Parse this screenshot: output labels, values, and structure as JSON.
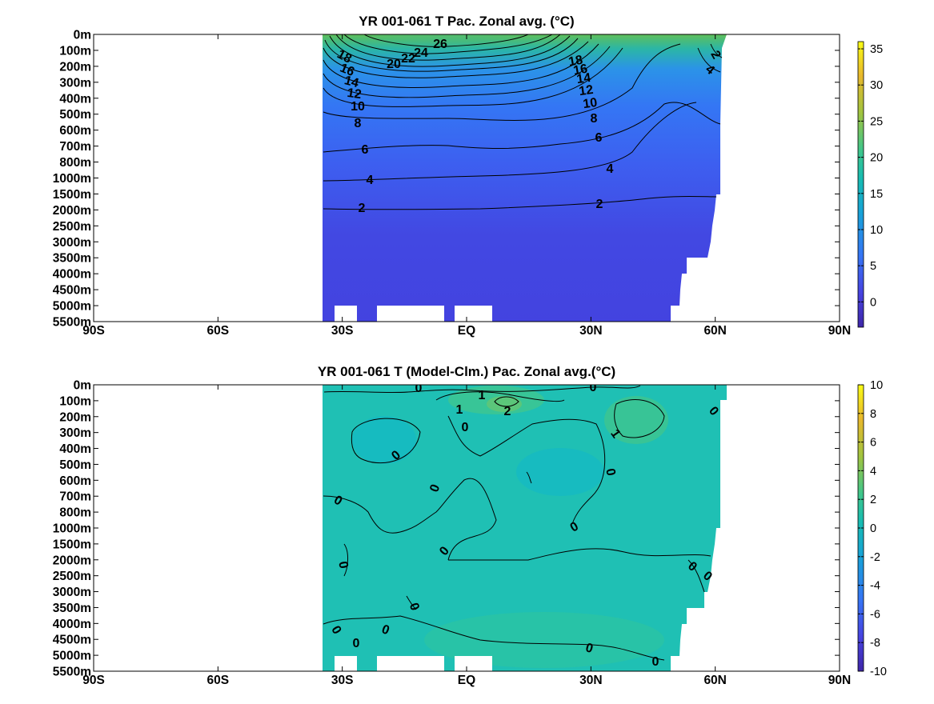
{
  "chart_data": [
    {
      "type": "heatmap",
      "title": "YR 001-061 T Pac. Zonal avg. (°C)",
      "x_tick_labels": [
        "90S",
        "60S",
        "30S",
        "EQ",
        "30N",
        "60N",
        "90N"
      ],
      "x_tick_values": [
        -90,
        -60,
        -30,
        0,
        30,
        60,
        90
      ],
      "y_tick_labels": [
        "0m",
        "100m",
        "200m",
        "300m",
        "400m",
        "500m",
        "600m",
        "700m",
        "800m",
        "1000m",
        "1500m",
        "2000m",
        "2500m",
        "3000m",
        "3500m",
        "4000m",
        "4500m",
        "5000m",
        "5500m"
      ],
      "colorbar": {
        "ticks": [
          0,
          5,
          10,
          15,
          20,
          25,
          30,
          35
        ],
        "range": [
          -3.5,
          36
        ]
      },
      "contours": [
        {
          "label": "26",
          "value": 26,
          "level_index": 0.4
        },
        {
          "label": "24",
          "value": 24,
          "level_index": 1.1
        },
        {
          "label": "22",
          "value": 22,
          "level_index": 1.4
        },
        {
          "label": "20",
          "value": 20,
          "level_index": 1.7
        },
        {
          "label": "18",
          "value": 18,
          "level_index": 1.6
        },
        {
          "label": "16",
          "value": 16,
          "level_index": 2.2
        },
        {
          "label": "14",
          "value": 14,
          "level_index": 2.8
        },
        {
          "label": "12",
          "value": 12,
          "level_index": 3.6
        },
        {
          "label": "10",
          "value": 10,
          "level_index": 4.4
        },
        {
          "label": "8",
          "value": 8,
          "level_index": 5.5
        },
        {
          "label": "6",
          "value": 6,
          "level_index": 7.1
        },
        {
          "label": "4",
          "value": 4,
          "level_index": 9.1
        },
        {
          "label": "2",
          "value": 2,
          "level_index": 11.0
        }
      ]
    },
    {
      "type": "heatmap",
      "title": "YR 001-061 T (Model-Clm.) Pac. Zonal avg.(°C)",
      "x_tick_labels": [
        "90S",
        "60S",
        "30S",
        "EQ",
        "30N",
        "60N",
        "90N"
      ],
      "x_tick_values": [
        -90,
        -60,
        -30,
        0,
        30,
        60,
        90
      ],
      "y_tick_labels": [
        "0m",
        "100m",
        "200m",
        "300m",
        "400m",
        "500m",
        "600m",
        "700m",
        "800m",
        "1000m",
        "1500m",
        "2000m",
        "2500m",
        "3000m",
        "3500m",
        "4000m",
        "4500m",
        "5000m",
        "5500m"
      ],
      "colorbar": {
        "ticks": [
          -10,
          -8,
          -6,
          -4,
          -2,
          0,
          2,
          4,
          6,
          8,
          10
        ],
        "range": [
          -10,
          10
        ]
      },
      "contours": [
        {
          "label": "0",
          "value": 0
        },
        {
          "label": "1",
          "value": 1
        },
        {
          "label": "2",
          "value": 2
        }
      ]
    }
  ]
}
